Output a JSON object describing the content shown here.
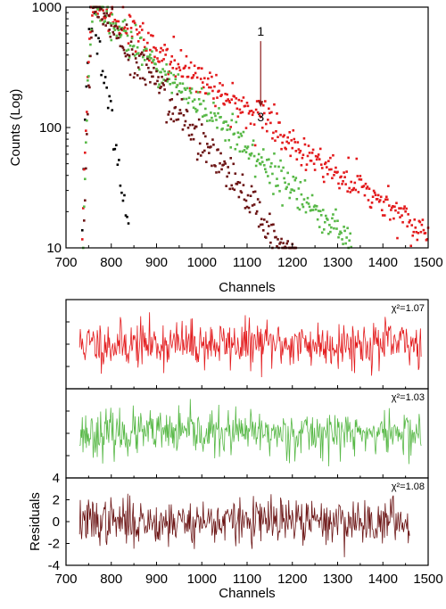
{
  "chart_data": [
    {
      "type": "scatter",
      "xlabel": "Channels",
      "ylabel": "Counts (Log)",
      "xlim": [
        700,
        1500
      ],
      "ylim": [
        10,
        1000
      ],
      "yscale": "log",
      "xticks": [
        "700",
        "800",
        "900",
        "1000",
        "1100",
        "1200",
        "1300",
        "1400",
        "1500"
      ],
      "yticks": [
        {
          "value": 10,
          "label": "10"
        },
        {
          "value": 100,
          "label": "100"
        },
        {
          "value": 1000,
          "label": "1000"
        }
      ],
      "annotations": {
        "start": "1",
        "end": "3",
        "arrow_from": [
          1130,
          540
        ],
        "arrow_to": [
          1130,
          150
        ]
      },
      "series": [
        {
          "color": "#000000",
          "peak": 760,
          "tau": 18,
          "end": 840,
          "step": 3,
          "sigma": 0.18,
          "x": [
            730,
            740,
            750,
            760,
            770,
            780,
            790,
            800,
            810,
            820,
            830,
            840
          ],
          "y": [
            12,
            70,
            450,
            1000,
            560,
            240,
            95,
            40,
            22,
            15,
            12,
            10
          ]
        },
        {
          "color": "#e31a1c",
          "peak": 762,
          "tau": 170,
          "end": 1500,
          "step": 2,
          "sigma": 0.16,
          "x": [
            800,
            900,
            1000,
            1100,
            1200,
            1300,
            1400,
            1500
          ],
          "y": [
            780,
            440,
            250,
            140,
            80,
            45,
            26,
            15
          ]
        },
        {
          "color": "#57b846",
          "peak": 763,
          "tau": 125,
          "end": 1330,
          "step": 2,
          "sigma": 0.17,
          "x": [
            800,
            900,
            1000,
            1100,
            1200,
            1300
          ],
          "y": [
            720,
            330,
            150,
            70,
            32,
            15
          ]
        },
        {
          "color": "#6b1414",
          "peak": 765,
          "tau": 92,
          "end": 1300,
          "step": 2,
          "sigma": 0.18,
          "x": [
            800,
            900,
            1000,
            1100,
            1200,
            1300
          ],
          "y": [
            640,
            220,
            80,
            30,
            14,
            10
          ]
        }
      ]
    },
    {
      "type": "line",
      "xlabel": "Channels",
      "ylabel": "Residuals",
      "xlim": [
        700,
        1500
      ],
      "ylim": [
        -4,
        4
      ],
      "xticks": [
        "700",
        "800",
        "900",
        "1000",
        "1100",
        "1200",
        "1300",
        "1400",
        "1500"
      ],
      "yticks": [
        "4",
        "2",
        "0",
        "-2",
        "-4"
      ],
      "panels": [
        {
          "label": "χ²=1.07",
          "color": "#e31a1c",
          "x_start": 730,
          "x_end": 1485,
          "seed": 11,
          "amp": 1.05
        },
        {
          "label": "χ²=1.03",
          "color": "#57b846",
          "x_start": 730,
          "x_end": 1485,
          "seed": 23,
          "amp": 1.0
        },
        {
          "label": "χ²=1.08",
          "color": "#6b1414",
          "x_start": 730,
          "x_end": 1460,
          "seed": 37,
          "amp": 1.05
        }
      ]
    }
  ]
}
